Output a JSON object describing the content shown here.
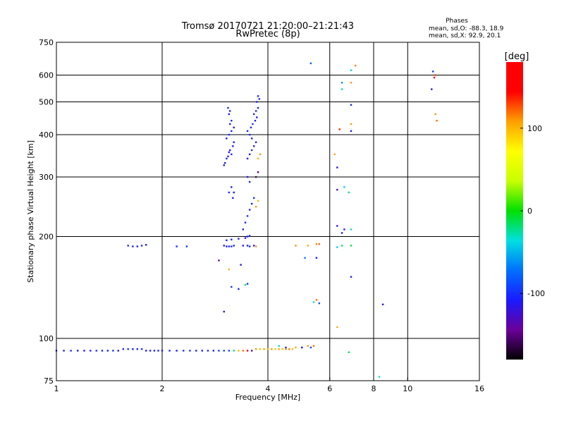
{
  "chart_data": {
    "type": "scatter",
    "title": "Tromsø 20170721 21:20:00–21:21:43",
    "subtitle": "RwPretec (8p)",
    "xlabel": "Frequency [MHz]",
    "ylabel": "Stationary phase Virtual Height [km]",
    "x_scale": "log",
    "y_scale": "log",
    "xlim": [
      1,
      16
    ],
    "ylim": [
      75,
      750
    ],
    "x_ticks": [
      1,
      2,
      4,
      6,
      8,
      10,
      16
    ],
    "y_ticks": [
      75,
      100,
      200,
      300,
      400,
      500,
      600,
      750
    ],
    "x_grid": [
      2,
      4,
      6,
      8,
      10
    ],
    "y_grid": [
      100,
      200,
      300,
      400,
      500,
      600
    ],
    "grid": true,
    "phase_info": {
      "title": "Phases",
      "line1": "mean, sd,O: -88.3, 18.9",
      "line2": "mean, sd,X:  92.9, 20.1"
    },
    "colorbar": {
      "label": "[deg]",
      "ticks": [
        100,
        0,
        -100
      ],
      "range": [
        -180,
        180
      ],
      "colors": [
        "#000000",
        "#6a0099",
        "#1a1aff",
        "#0070ff",
        "#00e0e0",
        "#00e000",
        "#c8ff00",
        "#ffff00",
        "#ffa000",
        "#ff0000",
        "#ff0000"
      ]
    },
    "series": [
      {
        "points": [
          [
            1.0,
            92,
            -105
          ],
          [
            1.05,
            92,
            -110
          ],
          [
            1.1,
            92,
            -100
          ],
          [
            1.15,
            92,
            -108
          ],
          [
            1.2,
            92,
            -112
          ],
          [
            1.25,
            92,
            -105
          ],
          [
            1.3,
            92,
            -98
          ],
          [
            1.35,
            92,
            -110
          ],
          [
            1.4,
            92,
            -106
          ],
          [
            1.45,
            92,
            -100
          ],
          [
            1.5,
            92,
            -112
          ],
          [
            1.55,
            93,
            -104
          ],
          [
            1.6,
            93,
            -98
          ],
          [
            1.65,
            93,
            -110
          ],
          [
            1.7,
            93,
            -105
          ],
          [
            1.75,
            93,
            -100
          ],
          [
            1.8,
            92,
            -108
          ],
          [
            1.85,
            92,
            -112
          ],
          [
            1.9,
            92,
            -102
          ],
          [
            1.95,
            92,
            -106
          ],
          [
            2.0,
            92,
            -110
          ],
          [
            2.1,
            92,
            -100
          ],
          [
            2.2,
            92,
            -108
          ],
          [
            2.3,
            92,
            -104
          ],
          [
            2.4,
            92,
            -98
          ],
          [
            2.5,
            92,
            -110
          ],
          [
            2.6,
            92,
            -105
          ],
          [
            2.7,
            92,
            -100
          ],
          [
            2.8,
            92,
            -112
          ],
          [
            2.9,
            92,
            -95
          ],
          [
            3.0,
            92,
            -90
          ],
          [
            3.1,
            92,
            -92
          ],
          [
            3.2,
            92,
            -20
          ],
          [
            3.3,
            92,
            100
          ],
          [
            3.4,
            92,
            120
          ],
          [
            3.5,
            92,
            150
          ],
          [
            3.6,
            92,
            -130
          ],
          [
            3.7,
            93,
            110
          ],
          [
            3.8,
            93,
            95
          ],
          [
            3.9,
            93,
            105
          ],
          [
            4.0,
            93,
            100
          ],
          [
            4.1,
            93,
            110
          ],
          [
            4.2,
            93,
            95
          ],
          [
            4.3,
            93,
            105
          ],
          [
            4.4,
            93,
            100
          ],
          [
            4.5,
            93,
            110
          ],
          [
            4.6,
            93,
            115
          ],
          [
            4.7,
            93,
            98
          ],
          [
            4.8,
            94,
            105
          ],
          [
            5.0,
            94,
            100
          ],
          [
            5.2,
            95,
            110
          ],
          [
            5.4,
            95,
            120
          ],
          [
            4.3,
            95,
            -40
          ],
          [
            4.5,
            94,
            -100
          ],
          [
            5.0,
            94,
            -110
          ],
          [
            5.3,
            94,
            -90
          ],
          [
            6.8,
            91,
            -15
          ],
          [
            8.3,
            77,
            -30
          ],
          [
            1.6,
            188,
            -100
          ],
          [
            1.65,
            187,
            -105
          ],
          [
            1.7,
            187,
            -110
          ],
          [
            1.75,
            188,
            -100
          ],
          [
            1.8,
            189,
            -108
          ],
          [
            2.2,
            187,
            -105
          ],
          [
            2.35,
            187,
            -95
          ],
          [
            3.0,
            188,
            -110
          ],
          [
            3.05,
            187,
            -105
          ],
          [
            3.1,
            187,
            -115
          ],
          [
            3.15,
            187,
            -100
          ],
          [
            3.2,
            188,
            -108
          ],
          [
            3.4,
            188,
            -110
          ],
          [
            3.5,
            188,
            -105
          ],
          [
            3.55,
            187,
            -100
          ],
          [
            3.65,
            188,
            -110
          ],
          [
            3.7,
            187,
            110
          ],
          [
            4.8,
            188,
            110
          ],
          [
            5.2,
            188,
            105
          ],
          [
            5.5,
            190,
            115
          ],
          [
            5.6,
            190,
            120
          ],
          [
            6.3,
            186,
            -40
          ],
          [
            6.5,
            188,
            -20
          ],
          [
            6.9,
            188,
            -10
          ],
          [
            3.05,
            195,
            -110
          ],
          [
            3.15,
            196,
            -105
          ],
          [
            3.3,
            197,
            -120
          ],
          [
            3.45,
            198,
            -110
          ],
          [
            3.5,
            200,
            -105
          ],
          [
            3.55,
            201,
            -100
          ],
          [
            2.9,
            170,
            -140
          ],
          [
            3.1,
            160,
            100
          ],
          [
            3.35,
            165,
            -110
          ],
          [
            3.15,
            142,
            -100
          ],
          [
            3.3,
            140,
            -105
          ],
          [
            3.45,
            144,
            -20
          ],
          [
            3.5,
            145,
            -100
          ],
          [
            3.0,
            120,
            -110
          ],
          [
            5.1,
            173,
            -70
          ],
          [
            5.5,
            173,
            -110
          ],
          [
            5.4,
            128,
            -40
          ],
          [
            5.5,
            130,
            120
          ],
          [
            5.6,
            127,
            -80
          ],
          [
            6.3,
            108,
            105
          ],
          [
            6.9,
            152,
            -105
          ],
          [
            8.5,
            126,
            -110
          ],
          [
            3.0,
            325,
            -110
          ],
          [
            3.02,
            330,
            -105
          ],
          [
            3.05,
            340,
            -100
          ],
          [
            3.08,
            345,
            -115
          ],
          [
            3.1,
            355,
            -110
          ],
          [
            3.12,
            360,
            -105
          ],
          [
            3.15,
            350,
            -100
          ],
          [
            3.18,
            370,
            -108
          ],
          [
            3.2,
            380,
            -112
          ],
          [
            3.05,
            390,
            -110
          ],
          [
            3.1,
            400,
            -100
          ],
          [
            3.15,
            410,
            -105
          ],
          [
            3.2,
            420,
            -110
          ],
          [
            3.12,
            430,
            -108
          ],
          [
            3.15,
            440,
            -100
          ],
          [
            3.1,
            460,
            -110
          ],
          [
            3.12,
            470,
            -105
          ],
          [
            3.08,
            480,
            -100
          ],
          [
            3.5,
            340,
            -105
          ],
          [
            3.55,
            350,
            -110
          ],
          [
            3.6,
            360,
            -100
          ],
          [
            3.65,
            370,
            -108
          ],
          [
            3.7,
            380,
            -112
          ],
          [
            3.6,
            390,
            -105
          ],
          [
            3.55,
            400,
            -100
          ],
          [
            3.5,
            410,
            -110
          ],
          [
            3.58,
            420,
            -105
          ],
          [
            3.62,
            430,
            -100
          ],
          [
            3.68,
            440,
            -108
          ],
          [
            3.72,
            450,
            -110
          ],
          [
            3.65,
            460,
            -105
          ],
          [
            3.7,
            470,
            -100
          ],
          [
            3.75,
            480,
            -110
          ],
          [
            3.72,
            500,
            -105
          ],
          [
            3.78,
            510,
            -100
          ],
          [
            3.75,
            520,
            -110
          ],
          [
            3.8,
            350,
            110
          ],
          [
            3.75,
            340,
            100
          ],
          [
            3.1,
            270,
            -100
          ],
          [
            3.15,
            280,
            -110
          ],
          [
            3.18,
            260,
            -105
          ],
          [
            3.2,
            270,
            -108
          ],
          [
            3.5,
            300,
            -120
          ],
          [
            3.55,
            290,
            -110
          ],
          [
            3.7,
            300,
            -160
          ],
          [
            3.75,
            310,
            -150
          ],
          [
            3.4,
            210,
            -110
          ],
          [
            3.45,
            220,
            -105
          ],
          [
            3.5,
            230,
            -100
          ],
          [
            3.55,
            240,
            -110
          ],
          [
            3.6,
            250,
            -105
          ],
          [
            3.65,
            260,
            -100
          ],
          [
            3.7,
            245,
            110
          ],
          [
            3.75,
            255,
            100
          ],
          [
            5.3,
            650,
            -80
          ],
          [
            6.5,
            570,
            -60
          ],
          [
            6.5,
            545,
            -30
          ],
          [
            6.9,
            570,
            110
          ],
          [
            6.9,
            620,
            -40
          ],
          [
            7.1,
            640,
            115
          ],
          [
            6.9,
            490,
            -105
          ],
          [
            6.9,
            430,
            110
          ],
          [
            6.9,
            410,
            -110
          ],
          [
            6.2,
            350,
            105
          ],
          [
            6.4,
            415,
            135
          ],
          [
            6.3,
            320,
            -120
          ],
          [
            6.3,
            275,
            -125
          ],
          [
            6.6,
            280,
            -40
          ],
          [
            6.8,
            270,
            -20
          ],
          [
            6.3,
            215,
            -120
          ],
          [
            6.5,
            205,
            -110
          ],
          [
            6.6,
            210,
            -105
          ],
          [
            6.9,
            210,
            -30
          ],
          [
            11.8,
            615,
            -100
          ],
          [
            12.0,
            600,
            130
          ],
          [
            11.9,
            590,
            150
          ],
          [
            11.7,
            545,
            -120
          ],
          [
            12.0,
            460,
            110
          ],
          [
            12.1,
            440,
            120
          ]
        ]
      }
    ]
  }
}
